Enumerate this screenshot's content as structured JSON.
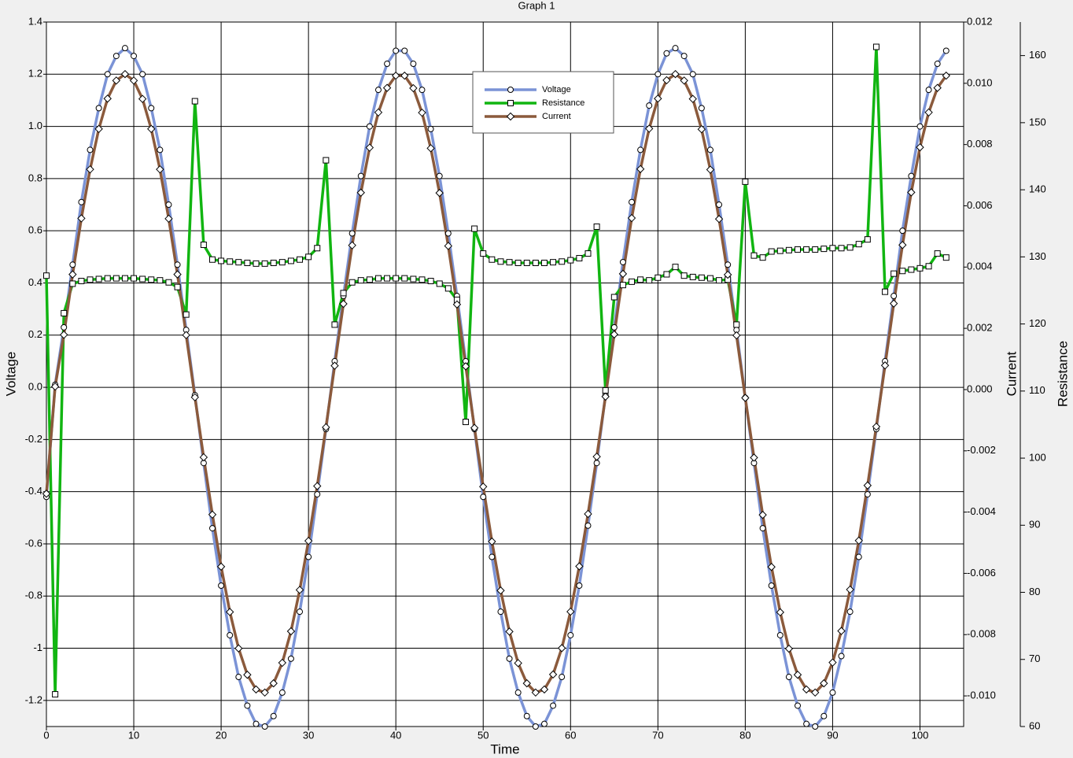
{
  "chart_data": {
    "type": "line",
    "title": "Graph 1",
    "x_label": "Time",
    "y_label": "Voltage",
    "y2_label": "Current",
    "y3_label": "Resistance",
    "grid": true,
    "legend": "top",
    "xlim": [
      0,
      105
    ],
    "xticks": [
      0,
      10,
      20,
      30,
      40,
      50,
      60,
      70,
      80,
      90,
      100
    ],
    "ylim": [
      -1.3,
      1.4
    ],
    "yticks": [
      -1.2,
      -1.0,
      -0.8,
      -0.6,
      -0.4,
      -0.2,
      {
        "value": 0,
        "label": "0.0"
      },
      0.2,
      0.4,
      0.6,
      0.8,
      {
        "value": 1,
        "label": "1.0"
      },
      1.2,
      1.4
    ],
    "y2lim": [
      -0.011,
      0.012
    ],
    "y2ticks": [
      {
        "value": -0.01,
        "label": "-0.010"
      },
      -0.008,
      -0.006,
      -0.004,
      -0.002,
      {
        "value": 0,
        "label": "0.000"
      },
      0.002,
      0.004,
      0.006,
      0.008,
      {
        "value": 0.01,
        "label": "0.010"
      },
      0.012
    ],
    "y3lim": [
      60,
      165
    ],
    "y3ticks": [
      60,
      70,
      80,
      90,
      100,
      110,
      120,
      130,
      140,
      150,
      160
    ],
    "x": [
      0,
      1,
      2,
      3,
      4,
      5,
      6,
      7,
      8,
      9,
      10,
      11,
      12,
      13,
      14,
      15,
      16,
      17,
      18,
      19,
      20,
      21,
      22,
      23,
      24,
      25,
      26,
      27,
      28,
      29,
      30,
      31,
      32,
      33,
      34,
      35,
      36,
      37,
      38,
      39,
      40,
      41,
      42,
      43,
      44,
      45,
      46,
      47,
      48,
      49,
      50,
      51,
      52,
      53,
      54,
      55,
      56,
      57,
      58,
      59,
      60,
      61,
      62,
      63,
      64,
      65,
      66,
      67,
      68,
      69,
      70,
      71,
      72,
      73,
      74,
      75,
      76,
      77,
      78,
      79,
      80,
      81,
      82,
      83,
      84,
      85,
      86,
      87,
      88,
      89,
      90,
      91,
      92,
      93,
      94,
      95,
      96,
      97,
      98,
      99,
      100,
      101,
      102,
      103
    ],
    "series": [
      {
        "name": "Voltage",
        "color": "#7b93d6",
        "axis": "y",
        "marker": "circle",
        "values": [
          -0.42,
          0.01,
          0.23,
          0.47,
          0.71,
          0.91,
          1.07,
          1.2,
          1.27,
          1.3,
          1.27,
          1.2,
          1.07,
          0.91,
          0.7,
          0.47,
          0.22,
          -0.03,
          -0.29,
          -0.54,
          -0.76,
          -0.95,
          -1.11,
          -1.22,
          -1.29,
          -1.3,
          -1.26,
          -1.17,
          -1.04,
          -0.86,
          -0.65,
          -0.41,
          -0.16,
          0.1,
          0.35,
          0.59,
          0.81,
          1.0,
          1.14,
          1.24,
          1.29,
          1.29,
          1.24,
          1.14,
          0.99,
          0.81,
          0.59,
          0.35,
          0.1,
          -0.16,
          -0.42,
          -0.65,
          -0.86,
          -1.04,
          -1.17,
          -1.26,
          -1.3,
          -1.29,
          -1.22,
          -1.11,
          -0.95,
          -0.76,
          -0.53,
          -0.29,
          -0.03,
          0.23,
          0.48,
          0.71,
          0.91,
          1.08,
          1.2,
          1.28,
          1.3,
          1.27,
          1.2,
          1.07,
          0.91,
          0.7,
          0.47,
          0.22,
          -0.04,
          -0.29,
          -0.54,
          -0.76,
          -0.95,
          -1.11,
          -1.22,
          -1.29,
          -1.3,
          -1.26,
          -1.17,
          -1.03,
          -0.86,
          -0.65,
          -0.41,
          -0.16,
          0.1,
          0.35,
          0.6,
          0.81,
          1.0,
          1.14,
          1.24,
          1.29
        ]
      },
      {
        "name": "Resistance",
        "color": "#11b511",
        "axis": "y3",
        "marker": "square",
        "values": [
          127.2,
          64.8,
          121.6,
          126,
          126.4,
          126.6,
          126.7,
          126.8,
          126.8,
          126.8,
          126.8,
          126.7,
          126.6,
          126.5,
          126.2,
          125.5,
          121.4,
          153.2,
          131.8,
          129.6,
          129.4,
          129.3,
          129.2,
          129.1,
          129.0,
          129.0,
          129.1,
          129.2,
          129.4,
          129.6,
          130.0,
          131.3,
          144.4,
          119.9,
          124.6,
          126.2,
          126.5,
          126.6,
          126.8,
          126.8,
          126.8,
          126.8,
          126.7,
          126.6,
          126.4,
          126.0,
          125.3,
          123.6,
          105.4,
          134.2,
          130.5,
          129.6,
          129.3,
          129.2,
          129.1,
          129.1,
          129.1,
          129.1,
          129.2,
          129.3,
          129.5,
          129.8,
          130.5,
          134.5,
          110.1,
          124.0,
          125.8,
          126.3,
          126.6,
          126.5,
          126.9,
          127.4,
          128.5,
          127.2,
          127.0,
          126.9,
          126.8,
          126.5,
          126.6,
          119.9,
          141.2,
          130.2,
          129.9,
          130.8,
          130.9,
          131.0,
          131.1,
          131.1,
          131.1,
          131.2,
          131.3,
          131.3,
          131.4,
          131.9,
          132.6,
          161.3,
          124.8,
          127.5,
          127.9,
          128.1,
          128.3,
          128.6,
          130.5,
          129.9
        ]
      },
      {
        "name": "Current",
        "color": "#8b5a3c",
        "axis": "y2",
        "marker": "diamond",
        "values": [
          -0.0034,
          0.0001,
          0.00179,
          0.00376,
          0.00559,
          0.00719,
          0.00851,
          0.0095,
          0.01009,
          0.0103,
          0.01009,
          0.00949,
          0.00851,
          0.00719,
          0.00558,
          0.00376,
          0.00178,
          -0.00025,
          -0.00221,
          -0.00408,
          -0.00578,
          -0.00726,
          -0.00845,
          -0.00931,
          -0.00979,
          -0.00989,
          -0.00959,
          -0.00892,
          -0.00789,
          -0.00654,
          -0.00494,
          -0.00315,
          -0.00123,
          0.00078,
          0.0028,
          0.00471,
          0.00643,
          0.0079,
          0.00905,
          0.00985,
          0.01025,
          0.01025,
          0.00984,
          0.00904,
          0.00788,
          0.00642,
          0.00469,
          0.00278,
          0.00076,
          -0.00125,
          -0.00317,
          -0.00496,
          -0.00656,
          -0.0079,
          -0.00893,
          -0.00959,
          -0.00989,
          -0.00979,
          -0.0093,
          -0.00844,
          -0.00725,
          -0.00577,
          -0.00406,
          -0.00219,
          -0.00023,
          0.0018,
          0.00378,
          0.0056,
          0.0072,
          0.00852,
          0.0095,
          0.0101,
          0.0103,
          0.01009,
          0.00949,
          0.0085,
          0.00718,
          0.00557,
          0.00375,
          0.00177,
          -0.00027,
          -0.00222,
          -0.00409,
          -0.00579,
          -0.00727,
          -0.00846,
          -0.00931,
          -0.00979,
          -0.00989,
          -0.00959,
          -0.00891,
          -0.00788,
          -0.00653,
          -0.00493,
          -0.00313,
          -0.00121,
          0.00079,
          0.00281,
          0.00472,
          0.00644,
          0.00791,
          0.00905,
          0.00985,
          0.01025
        ]
      }
    ]
  }
}
